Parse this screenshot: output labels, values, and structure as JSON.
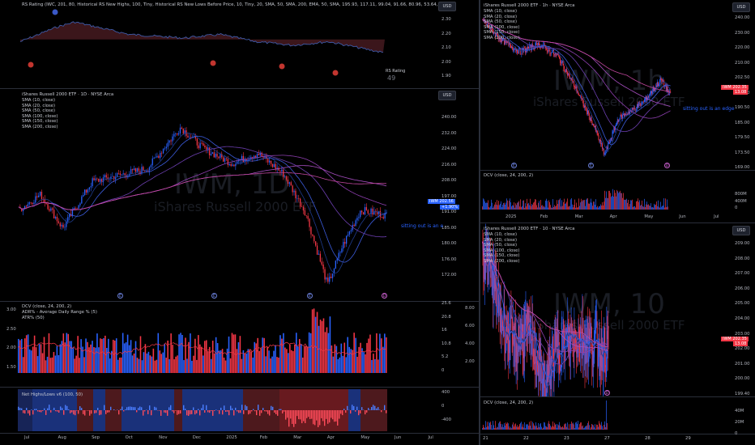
{
  "left": {
    "rs_panel": {
      "title": "RS Rating (IWC, 201, 80, Historical RS New Highs, 100, Tiny, Historical RS New Lows  Before Price, 10, Tiny, 20, SMA, 50, SMA, 200, EMA, 50, SMA, 195.93, 117.11, 99.04, 91.66, 80.96, 53.64, 24.86)",
      "axis": [
        "2.30",
        "2.20",
        "2.10",
        "2.00",
        "1.90"
      ],
      "rs_label": "RS Rating",
      "rs_value": "49"
    },
    "price_panel": {
      "title": "iShares Russell 2000 ETF · 1D · NYSE Arca",
      "smas": [
        "SMA (10, close)",
        "SMA (20, close)",
        "SMA (50, close)",
        "SMA (100, close)",
        "SMA (150, close)",
        "SMA (200, close)"
      ],
      "axis": [
        "240.00",
        "232.00",
        "224.00",
        "216.00",
        "208.00",
        "197.00",
        "191.00",
        "185.00",
        "180.00",
        "176.00",
        "172.00"
      ],
      "watermark_symbol": "IWM, 1D",
      "watermark_name": "iShares Russell 2000 ETF",
      "price_tag_symbol": "IWM",
      "price_tag_price": "202.56",
      "price_tag_change": "+1.90%",
      "note": "sitting out is an e"
    },
    "dcv_panel": {
      "line1": "DCV (close, 24, 200, 2)",
      "line2": "ADR% - Average Daily Range % (5)",
      "line3": "ATR% (50)",
      "left_axis": [
        "3.00",
        "2.50",
        "2.00",
        "1.50"
      ],
      "mid_axis": [
        "25.6",
        "20.8",
        "16",
        "10.8",
        "5.2",
        "0"
      ],
      "right_axis": [
        "8.00",
        "6.00",
        "4.00",
        "2.00"
      ]
    },
    "nhnl_panel": {
      "title": "Net Highs/Lows v6 (100, 50)",
      "axis": [
        "400",
        "0",
        "-400"
      ]
    },
    "time_axis": [
      "Jul",
      "Aug",
      "Sep",
      "Oct",
      "Nov",
      "Dec",
      "2025",
      "Feb",
      "Mar",
      "Apr",
      "May",
      "Jun",
      "Jul"
    ],
    "usd": "USD"
  },
  "right_top": {
    "title": "iShares Russell 2000 ETF · 1h · NYSE Arca",
    "smas": [
      "SMA (10, close)",
      "SMA (20, close)",
      "SMA (50, close)",
      "SMA (100, close)",
      "SMA (150, close)",
      "SMA (200, close)"
    ],
    "axis": [
      "240.00",
      "230.00",
      "220.00",
      "210.00",
      "202.50",
      "196.50",
      "190.50",
      "185.00",
      "179.50",
      "173.50",
      "169.00"
    ],
    "watermark_symbol": "IWM, 1h",
    "watermark_name": "iShares Russell 2000 ETF",
    "price_tag_symbol": "IWM",
    "price_tag_price": "202.35",
    "price_tag_change": "13.08",
    "note": "sitting out is an edge",
    "dcv": "DCV (close, 24, 200, 2)",
    "dcv_axis": [
      "800M",
      "400M",
      "0"
    ],
    "time_axis": [
      "2025",
      "Feb",
      "Mar",
      "Apr",
      "May",
      "Jun",
      "Jul"
    ],
    "usd": "USD"
  },
  "right_bottom": {
    "title": "iShares Russell 2000 ETF · 10 · NYSE Arca",
    "smas": [
      "SMA (10, close)",
      "SMA (20, close)",
      "SMA (50, close)",
      "SMA (100, close)",
      "SMA (150, close)",
      "SMA (200, close)"
    ],
    "axis": [
      "209.00",
      "208.00",
      "207.00",
      "206.00",
      "205.00",
      "204.00",
      "203.00",
      "202.00",
      "201.00",
      "200.00",
      "199.40"
    ],
    "watermark_symbol": "IWM, 10",
    "watermark_name": "iShares Russell 2000 ETF",
    "price_tag_symbol": "IWM",
    "price_tag_price": "202.35",
    "price_tag_change": "13.08",
    "dcv": "DCV (close, 24, 200, 2)",
    "dcv_axis": [
      "40M",
      "20M",
      "0"
    ],
    "time_axis": [
      "21",
      "22",
      "23",
      "27",
      "28",
      "29"
    ],
    "usd": "USD"
  },
  "colors": {
    "bull": "#2962ff",
    "bear": "#f23645",
    "sma": "#9c27b0",
    "background": "#000000"
  }
}
